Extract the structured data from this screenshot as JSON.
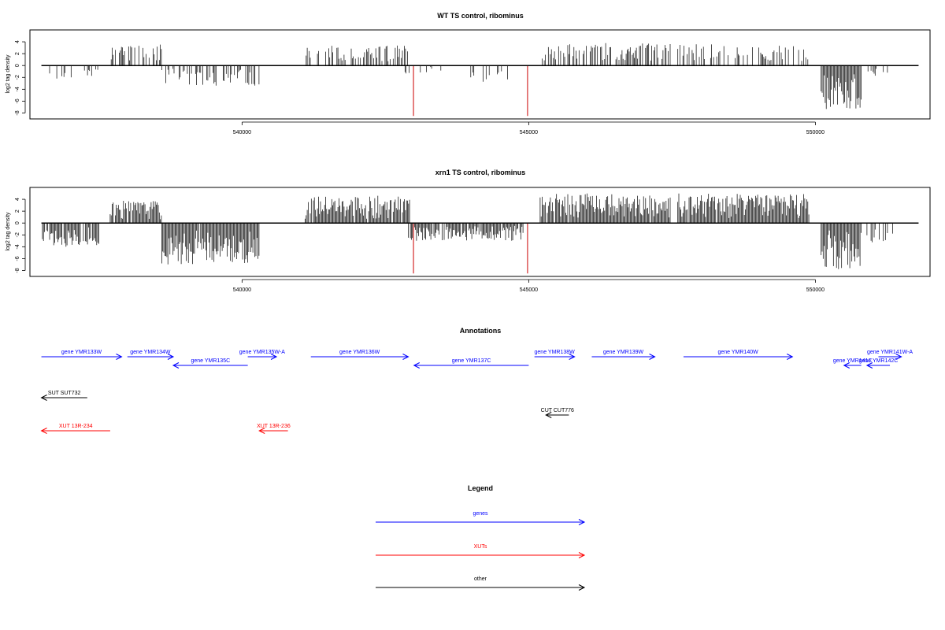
{
  "chart_data": [
    {
      "type": "bar",
      "title": "WT TS control, ribominus",
      "ylabel": "log2 tag density",
      "xlabel": "",
      "xlim": [
        536300,
        552000
      ],
      "ylim": [
        -9,
        6
      ],
      "yticks": [
        -8,
        -6,
        -4,
        -2,
        0,
        2,
        4
      ],
      "xticks": [
        540000,
        545000,
        550000
      ],
      "grid": false,
      "positive_color": "#000000",
      "negative_color": "#000000",
      "highlight_color": "#cc0000",
      "highlights": [
        {
          "x": 542990,
          "value": -8.5
        },
        {
          "x": 544980,
          "value": -8.5
        }
      ],
      "segments": [
        {
          "x_start": 537700,
          "x_end": 538600,
          "max": 3.6,
          "density": 0.5,
          "seed": 11
        },
        {
          "x_start": 541100,
          "x_end": 542900,
          "max": 3.4,
          "density": 0.5,
          "seed": 12
        },
        {
          "x_start": 545200,
          "x_end": 547500,
          "max": 3.8,
          "density": 0.55,
          "seed": 13
        },
        {
          "x_start": 547600,
          "x_end": 549900,
          "max": 3.6,
          "density": 0.45,
          "seed": 14
        },
        {
          "x_start": 536500,
          "x_end": 537500,
          "max": -2.2,
          "density": 0.25,
          "seed": 21
        },
        {
          "x_start": 538600,
          "x_end": 540300,
          "max": -3.4,
          "density": 0.45,
          "seed": 22
        },
        {
          "x_start": 542700,
          "x_end": 543500,
          "max": -1.5,
          "density": 0.2,
          "seed": 23
        },
        {
          "x_start": 543900,
          "x_end": 544700,
          "max": -3.0,
          "density": 0.2,
          "seed": 24
        },
        {
          "x_start": 550100,
          "x_end": 550800,
          "max": -7.4,
          "density": 1.0,
          "seed": 25
        },
        {
          "x_start": 550900,
          "x_end": 551300,
          "max": -2.0,
          "density": 0.3,
          "seed": 26
        }
      ]
    },
    {
      "type": "bar",
      "title": "xrn1 TS control, ribominus",
      "ylabel": "log2 tag density",
      "xlabel": "",
      "xlim": [
        536300,
        552000
      ],
      "ylim": [
        -9,
        6
      ],
      "yticks": [
        -8,
        -6,
        -4,
        -2,
        0,
        2,
        4
      ],
      "xticks": [
        540000,
        545000,
        550000
      ],
      "grid": false,
      "positive_color": "#000000",
      "negative_color": "#000000",
      "highlight_color": "#cc0000",
      "highlights": [
        {
          "x": 542990,
          "value": -8.5
        },
        {
          "x": 544980,
          "value": -8.5
        }
      ],
      "segments": [
        {
          "x_start": 537700,
          "x_end": 538600,
          "max": 3.8,
          "density": 0.9,
          "seed": 31
        },
        {
          "x_start": 541100,
          "x_end": 542950,
          "max": 4.6,
          "density": 0.95,
          "seed": 32
        },
        {
          "x_start": 545200,
          "x_end": 547500,
          "max": 5.0,
          "density": 0.95,
          "seed": 33
        },
        {
          "x_start": 547600,
          "x_end": 549900,
          "max": 5.0,
          "density": 0.95,
          "seed": 34
        },
        {
          "x_start": 536500,
          "x_end": 537500,
          "max": -4.0,
          "density": 0.8,
          "seed": 41
        },
        {
          "x_start": 538600,
          "x_end": 540300,
          "max": -7.0,
          "density": 0.95,
          "seed": 42
        },
        {
          "x_start": 542900,
          "x_end": 544900,
          "max": -3.0,
          "density": 0.85,
          "seed": 43
        },
        {
          "x_start": 550100,
          "x_end": 550800,
          "max": -8.0,
          "density": 1.0,
          "seed": 44
        },
        {
          "x_start": 550900,
          "x_end": 551400,
          "max": -4.0,
          "density": 0.4,
          "seed": 45
        }
      ]
    }
  ],
  "annotations": {
    "title": "Annotations",
    "features": [
      {
        "label": "gene YMR133W",
        "x_start": 536500,
        "x_end": 537900,
        "strand": "+",
        "row": 0,
        "color": "#0000ff"
      },
      {
        "label": "gene YMR134W",
        "x_start": 538000,
        "x_end": 538800,
        "strand": "+",
        "row": 0,
        "color": "#0000ff"
      },
      {
        "label": "gene YMR135C",
        "x_start": 538800,
        "x_end": 540100,
        "strand": "-",
        "row": 1,
        "color": "#0000ff"
      },
      {
        "label": "gene YMR135W-A",
        "x_start": 540100,
        "x_end": 540600,
        "strand": "+",
        "row": 0,
        "color": "#0000ff"
      },
      {
        "label": "gene YMR136W",
        "x_start": 541200,
        "x_end": 542900,
        "strand": "+",
        "row": 0,
        "color": "#0000ff"
      },
      {
        "label": "gene YMR137C",
        "x_start": 543000,
        "x_end": 545000,
        "strand": "-",
        "row": 1,
        "color": "#0000ff"
      },
      {
        "label": "gene YMR138W",
        "x_start": 545100,
        "x_end": 545800,
        "strand": "+",
        "row": 0,
        "color": "#0000ff"
      },
      {
        "label": "gene YMR139W",
        "x_start": 546100,
        "x_end": 547200,
        "strand": "+",
        "row": 0,
        "color": "#0000ff"
      },
      {
        "label": "gene YMR140W",
        "x_start": 547700,
        "x_end": 549600,
        "strand": "+",
        "row": 0,
        "color": "#0000ff"
      },
      {
        "label": "gene YMR141C",
        "x_start": 550500,
        "x_end": 550800,
        "strand": "-",
        "row": 1,
        "color": "#0000ff"
      },
      {
        "label": "gene YMR142C",
        "x_start": 550900,
        "x_end": 551300,
        "strand": "-",
        "row": 1,
        "color": "#0000ff"
      },
      {
        "label": "gene YMR141W-A",
        "x_start": 551100,
        "x_end": 551500,
        "strand": "+",
        "row": 0,
        "color": "#0000ff"
      },
      {
        "label": "SUT SUT732",
        "x_start": 536500,
        "x_end": 537300,
        "strand": "-",
        "row": 2,
        "color": "#000000"
      },
      {
        "label": "CUT CUT776",
        "x_start": 545300,
        "x_end": 545700,
        "strand": "-",
        "row": 3,
        "color": "#000000"
      },
      {
        "label": "XUT 13R-234",
        "x_start": 536500,
        "x_end": 537700,
        "strand": "-",
        "row": 4,
        "color": "#ff0000"
      },
      {
        "label": "XUT 13R-236",
        "x_start": 540300,
        "x_end": 540800,
        "strand": "-",
        "row": 4,
        "color": "#ff0000"
      }
    ]
  },
  "legend": {
    "title": "Legend",
    "items": [
      {
        "label": "genes",
        "color": "#0000ff"
      },
      {
        "label": "XUTs",
        "color": "#ff0000"
      },
      {
        "label": "other",
        "color": "#000000"
      }
    ]
  }
}
